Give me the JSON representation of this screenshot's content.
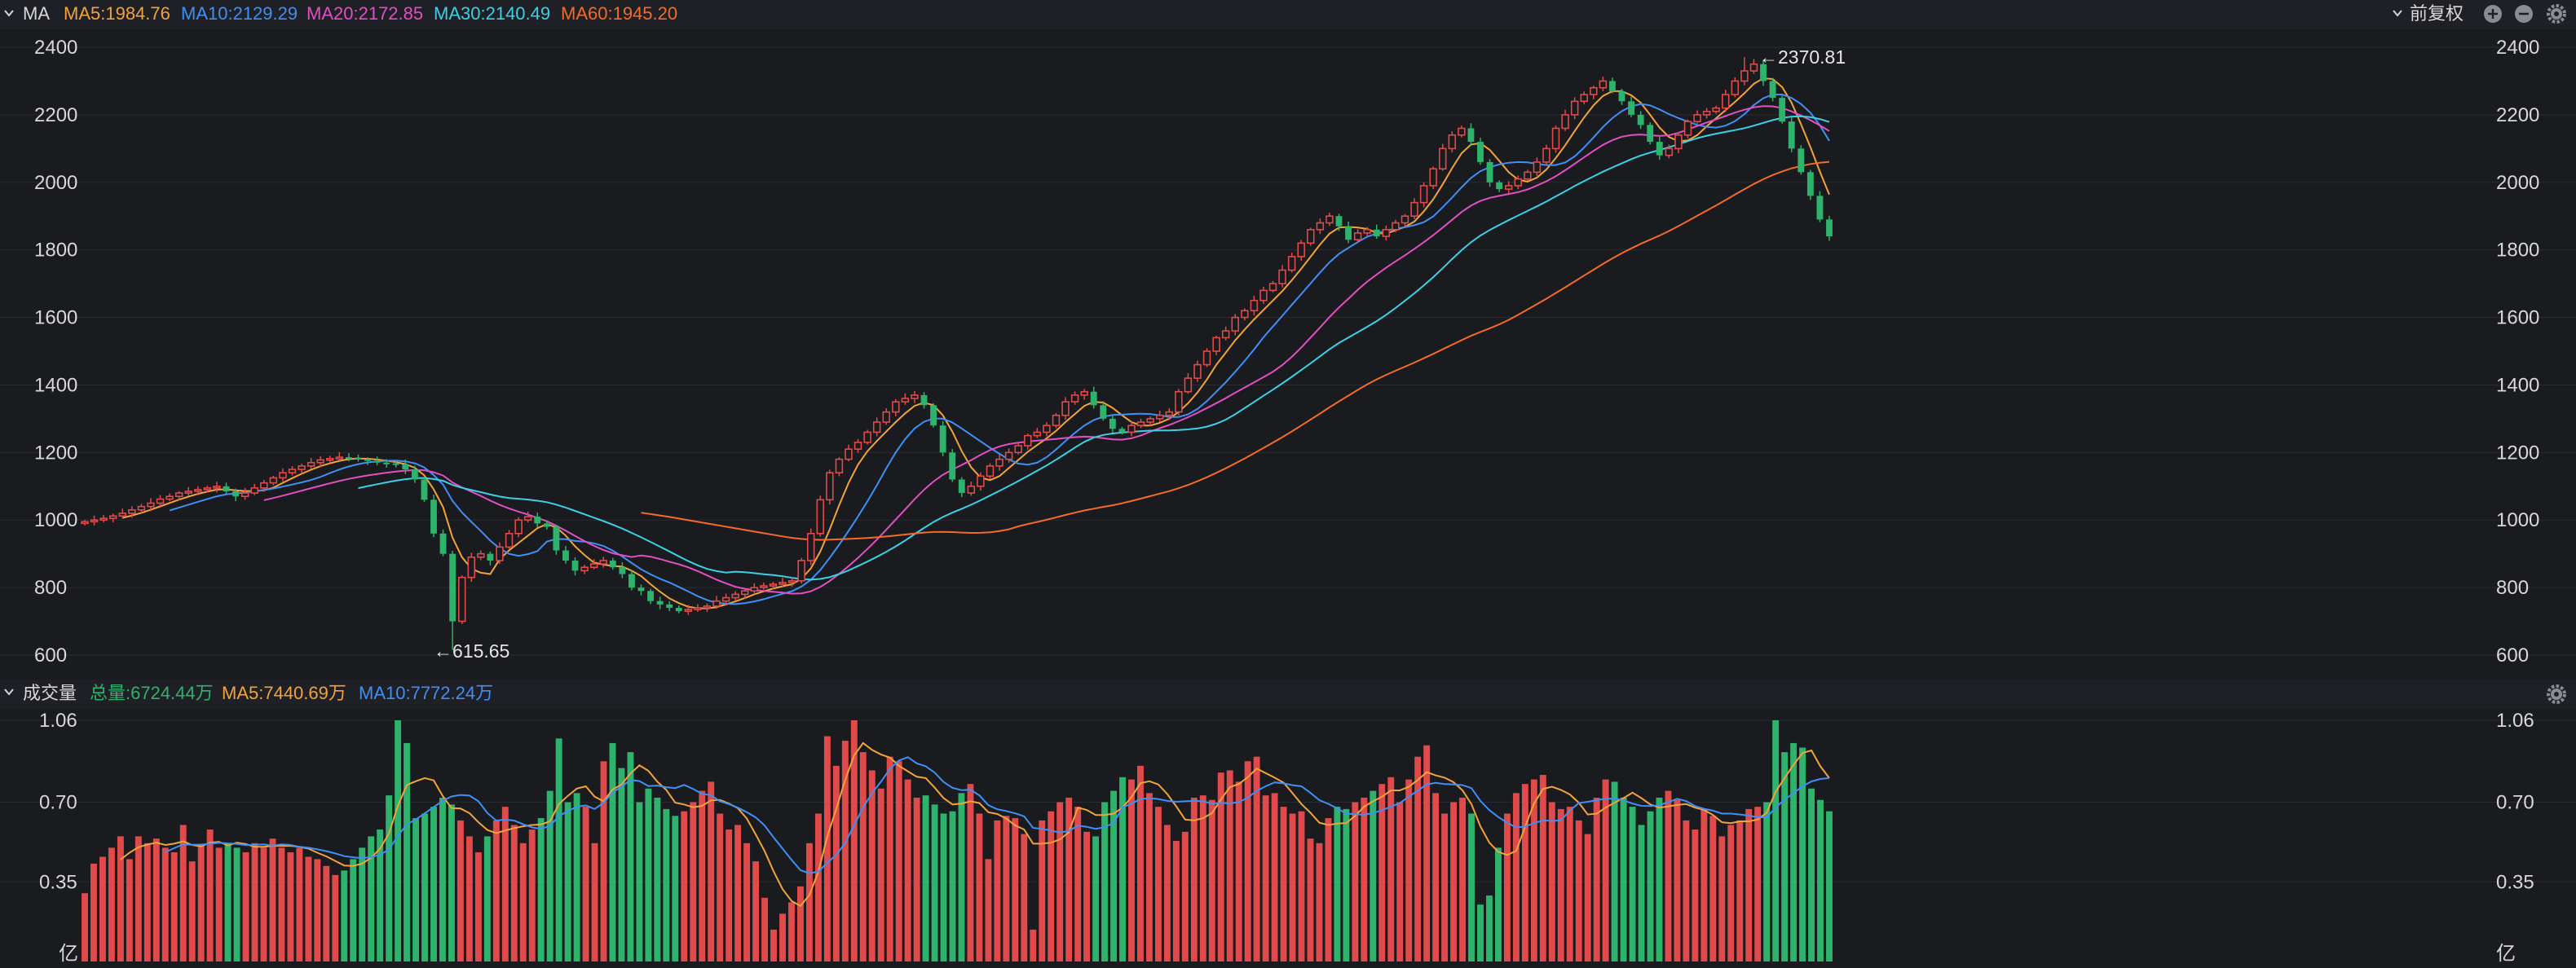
{
  "colors": {
    "background": "#1a1b1f",
    "header_bg": "#1f2025",
    "grid": "#2a2b31",
    "up": "#e04a4a",
    "down": "#2db36b",
    "text": "#d8d8d8",
    "ma5": "#f2a33a",
    "ma10": "#3f8ff5",
    "ma20": "#e14fc2",
    "ma30": "#3cd0e6",
    "ma60": "#f26b2a",
    "vol_total": "#2db36b"
  },
  "price_header": {
    "toggle_icon": "chevron-down-icon",
    "indicator": "MA",
    "ma5": "MA5:1984.76",
    "ma10": "MA10:2129.29",
    "ma20": "MA20:2172.85",
    "ma30": "MA30:2140.49",
    "ma60": "MA60:1945.20",
    "adjust": "前复权",
    "icons": [
      "plus-circle-icon",
      "minus-circle-icon",
      "gear-icon"
    ]
  },
  "volume_header": {
    "toggle_icon": "chevron-down-icon",
    "title": "成交量",
    "total": "总量:6724.44万",
    "ma5": "MA5:7440.69万",
    "ma10": "MA10:7772.24万",
    "icons": [
      "gear-icon"
    ]
  },
  "annotations": {
    "high": "←2370.81",
    "low": "←615.65"
  },
  "chart_data": [
    {
      "type": "candlestick",
      "y_ticks": [
        "2400",
        "2200",
        "2000",
        "1800",
        "1600",
        "1400",
        "1200",
        "1000",
        "800",
        "600"
      ],
      "ylim": [
        560,
        2400
      ],
      "high": 2370.81,
      "low": 615.65,
      "close_series": [
        995,
        1000,
        1005,
        1012,
        1020,
        1030,
        1040,
        1050,
        1062,
        1070,
        1080,
        1085,
        1090,
        1095,
        1100,
        1085,
        1070,
        1080,
        1095,
        1110,
        1125,
        1140,
        1150,
        1160,
        1170,
        1178,
        1182,
        1186,
        1185,
        1180,
        1175,
        1170,
        1168,
        1165,
        1150,
        1120,
        1060,
        960,
        900,
        700,
        830,
        890,
        900,
        880,
        920,
        960,
        1000,
        1010,
        990,
        980,
        910,
        880,
        850,
        860,
        870,
        880,
        860,
        840,
        800,
        790,
        760,
        750,
        740,
        730,
        735,
        740,
        745,
        760,
        770,
        780,
        790,
        800,
        805,
        810,
        815,
        820,
        880,
        960,
        1060,
        1140,
        1180,
        1210,
        1230,
        1260,
        1290,
        1320,
        1350,
        1360,
        1370,
        1340,
        1280,
        1200,
        1120,
        1080,
        1100,
        1130,
        1160,
        1180,
        1200,
        1220,
        1250,
        1260,
        1280,
        1310,
        1350,
        1370,
        1380,
        1340,
        1300,
        1270,
        1260,
        1280,
        1290,
        1300,
        1310,
        1320,
        1380,
        1420,
        1460,
        1500,
        1540,
        1560,
        1600,
        1620,
        1650,
        1680,
        1700,
        1740,
        1780,
        1820,
        1860,
        1880,
        1900,
        1870,
        1830,
        1850,
        1860,
        1840,
        1860,
        1880,
        1900,
        1940,
        1990,
        2040,
        2100,
        2140,
        2160,
        2120,
        2060,
        2000,
        1980,
        1990,
        2010,
        2030,
        2060,
        2100,
        2160,
        2200,
        2240,
        2260,
        2280,
        2300,
        2270,
        2240,
        2200,
        2170,
        2120,
        2080,
        2100,
        2140,
        2180,
        2200,
        2210,
        2220,
        2260,
        2300,
        2330,
        2350,
        2300,
        2250,
        2180,
        2100,
        2030,
        1960,
        1890,
        1840
      ],
      "series": [
        {
          "name": "MA5",
          "value": 1984.76
        },
        {
          "name": "MA10",
          "value": 2129.29
        },
        {
          "name": "MA20",
          "value": 2172.85
        },
        {
          "name": "MA30",
          "value": 2140.49
        },
        {
          "name": "MA60",
          "value": 1945.2
        }
      ]
    },
    {
      "type": "bar",
      "y_ticks": [
        "1.06",
        "0.70",
        "0.35"
      ],
      "unit": "亿",
      "ylim": [
        0,
        1.06
      ],
      "values": [
        0.3,
        0.43,
        0.46,
        0.5,
        0.55,
        0.45,
        0.55,
        0.52,
        0.54,
        0.5,
        0.48,
        0.6,
        0.44,
        0.51,
        0.58,
        0.5,
        0.52,
        0.5,
        0.48,
        0.52,
        0.5,
        0.54,
        0.5,
        0.48,
        0.5,
        0.46,
        0.45,
        0.42,
        0.38,
        0.4,
        0.45,
        0.5,
        0.55,
        0.58,
        0.73,
        1.06,
        0.96,
        0.63,
        0.65,
        0.68,
        0.72,
        0.69,
        0.62,
        0.55,
        0.48,
        0.55,
        0.62,
        0.68,
        0.6,
        0.52,
        0.58,
        0.63,
        0.75,
        0.98,
        0.7,
        0.74,
        0.68,
        0.52,
        0.88,
        0.96,
        0.85,
        0.92,
        0.7,
        0.76,
        0.72,
        0.67,
        0.64,
        0.66,
        0.7,
        0.75,
        0.79,
        0.65,
        0.58,
        0.6,
        0.52,
        0.44,
        0.28,
        0.14,
        0.21,
        0.26,
        0.33,
        0.52,
        0.65,
        0.99,
        0.86,
        0.97,
        1.06,
        0.92,
        0.84,
        0.76,
        0.9,
        0.88,
        0.8,
        0.72,
        0.73,
        0.69,
        0.65,
        0.66,
        0.74,
        0.78,
        0.65,
        0.45,
        0.62,
        0.64,
        0.63,
        0.56,
        0.14,
        0.62,
        0.66,
        0.7,
        0.72,
        0.68,
        0.57,
        0.55,
        0.7,
        0.75,
        0.81,
        0.8,
        0.86,
        0.74,
        0.68,
        0.6,
        0.53,
        0.57,
        0.72,
        0.73,
        0.71,
        0.83,
        0.84,
        0.79,
        0.88,
        0.9,
        0.73,
        0.74,
        0.68,
        0.65,
        0.66,
        0.54,
        0.52,
        0.63,
        0.68,
        0.67,
        0.7,
        0.72,
        0.75,
        0.78,
        0.81,
        0.7,
        0.8,
        0.9,
        0.95,
        0.74,
        0.65,
        0.7,
        0.72,
        0.65,
        0.25,
        0.29,
        0.5,
        0.65,
        0.74,
        0.78,
        0.8,
        0.82,
        0.7,
        0.67,
        0.68,
        0.62,
        0.56,
        0.72,
        0.8,
        0.79,
        0.72,
        0.68,
        0.6,
        0.66,
        0.72,
        0.75,
        0.71,
        0.62,
        0.58,
        0.67,
        0.64,
        0.55,
        0.6,
        0.62,
        0.67,
        0.68,
        0.7,
        1.06,
        0.92,
        0.96,
        0.94,
        0.76,
        0.71,
        0.66
      ],
      "series": [
        {
          "name": "MA5",
          "value": "7440.69万"
        },
        {
          "name": "MA10",
          "value": "7772.24万"
        }
      ]
    }
  ]
}
